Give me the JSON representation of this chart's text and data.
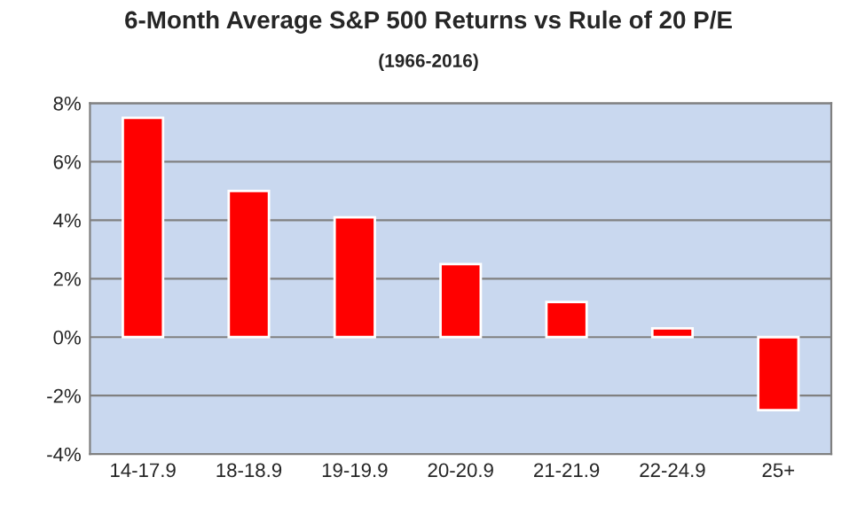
{
  "chart_data": {
    "type": "bar",
    "title": "6-Month Average S&P 500 Returns vs Rule of 20 P/E",
    "subtitle": "(1966-2016)",
    "categories": [
      "14-17.9",
      "18-18.9",
      "19-19.9",
      "20-20.9",
      "21-21.9",
      "22-24.9",
      "25+"
    ],
    "values": [
      7.5,
      5.0,
      4.1,
      2.5,
      1.2,
      0.3,
      -2.5
    ],
    "color": "#ff0000",
    "ylim": [
      -4,
      8
    ],
    "yticks": [
      {
        "value": -4,
        "label": "-4%"
      },
      {
        "value": -2,
        "label": "-2%"
      },
      {
        "value": 0,
        "label": "0%"
      },
      {
        "value": 2,
        "label": "2%"
      },
      {
        "value": 4,
        "label": "4%"
      },
      {
        "value": 6,
        "label": "6%"
      },
      {
        "value": 8,
        "label": "8%"
      }
    ],
    "grid": "y",
    "legend": false
  }
}
